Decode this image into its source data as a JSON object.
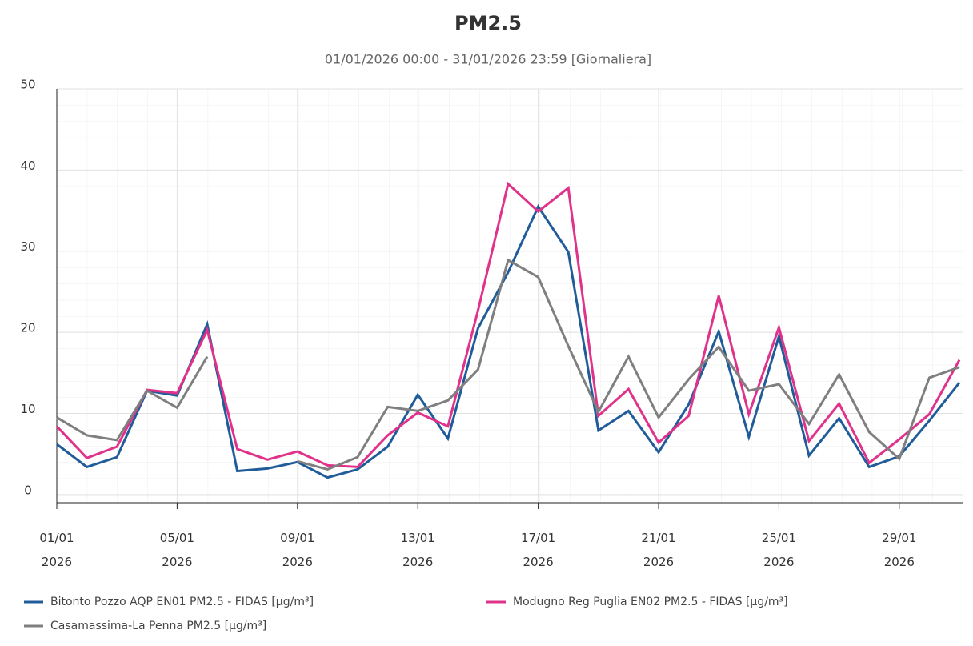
{
  "chart_data": {
    "type": "line",
    "title": "PM2.5",
    "subtitle": "01/01/2026 00:00 - 31/01/2026 23:59 [Giornaliera]",
    "x": [
      "2026-01-01",
      "2026-01-02",
      "2026-01-03",
      "2026-01-04",
      "2026-01-05",
      "2026-01-06",
      "2026-01-07",
      "2026-01-08",
      "2026-01-09",
      "2026-01-10",
      "2026-01-11",
      "2026-01-12",
      "2026-01-13",
      "2026-01-14",
      "2026-01-15",
      "2026-01-16",
      "2026-01-17",
      "2026-01-18",
      "2026-01-19",
      "2026-01-20",
      "2026-01-21",
      "2026-01-22",
      "2026-01-23",
      "2026-01-24",
      "2026-01-25",
      "2026-01-26",
      "2026-01-27",
      "2026-01-28",
      "2026-01-29",
      "2026-01-30",
      "2026-01-31"
    ],
    "series": [
      {
        "name": "Bitonto Pozzo AQP EN01 PM2.5 - FIDAS [µg/m³]",
        "color": "#1f5c99",
        "values": [
          6.2,
          3.4,
          4.6,
          12.8,
          12.2,
          21,
          2.9,
          3.2,
          4,
          2.1,
          3.1,
          5.9,
          12.3,
          6.9,
          20.5,
          27.4,
          35.5,
          29.9,
          7.9,
          10.3,
          5.2,
          11.1,
          20.1,
          7.1,
          19.5,
          4.8,
          9.4,
          3.4,
          4.7,
          9.1,
          13.8
        ]
      },
      {
        "name": "Modugno Reg Puglia EN02 PM2.5 - FIDAS [µg/m³]",
        "color": "#e0328a",
        "values": [
          8.4,
          4.5,
          5.9,
          12.9,
          12.5,
          20.3,
          5.6,
          4.3,
          5.3,
          3.6,
          3.4,
          7.3,
          10.1,
          8.4,
          22.7,
          38.3,
          34.9,
          37.8,
          9.7,
          13,
          6.4,
          9.7,
          24.5,
          9.9,
          20.6,
          6.6,
          11.2,
          3.9,
          6.8,
          9.9,
          16.6
        ]
      },
      {
        "name": "Casamassima-La Penna PM2.5 [µg/m³]",
        "color": "#7f7f7f",
        "values": [
          9.5,
          7.3,
          6.7,
          12.8,
          10.7,
          17,
          null,
          null,
          4.1,
          3.1,
          4.6,
          10.8,
          10.3,
          11.6,
          15.4,
          28.9,
          26.8,
          18.3,
          10.2,
          17,
          9.5,
          14.2,
          18.2,
          12.8,
          13.6,
          8.7,
          14.8,
          7.7,
          4.4,
          14.4,
          15.7
        ]
      }
    ],
    "xlim": [
      "2026-01-01",
      "2026-01-31"
    ],
    "xticks": [
      {
        "value": "2026-01-01",
        "label": [
          "01/01",
          "2026"
        ]
      },
      {
        "value": "2026-01-05",
        "label": [
          "05/01",
          "2026"
        ]
      },
      {
        "value": "2026-01-09",
        "label": [
          "09/01",
          "2026"
        ]
      },
      {
        "value": "2026-01-13",
        "label": [
          "13/01",
          "2026"
        ]
      },
      {
        "value": "2026-01-17",
        "label": [
          "17/01",
          "2026"
        ]
      },
      {
        "value": "2026-01-21",
        "label": [
          "21/01",
          "2026"
        ]
      },
      {
        "value": "2026-01-25",
        "label": [
          "25/01",
          "2026"
        ]
      },
      {
        "value": "2026-01-29",
        "label": [
          "29/01",
          "2026"
        ]
      }
    ],
    "ylim": [
      -1,
      50
    ],
    "yticks": [
      0,
      10,
      20,
      30,
      40,
      50
    ],
    "grid": true
  }
}
